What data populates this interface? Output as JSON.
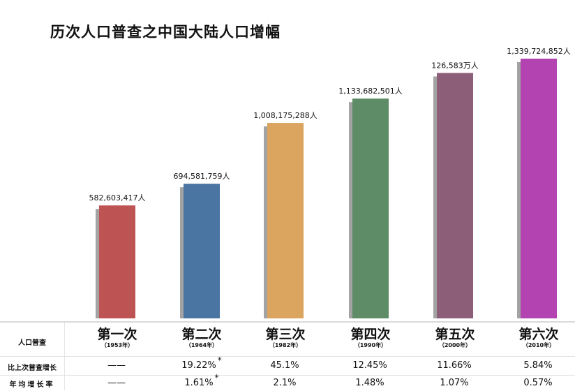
{
  "title": "历次人口普查之中国大陆人口增幅",
  "table": {
    "row_labels": {
      "census": "人口普查",
      "growth": "比上次普查增长",
      "annual": "年均增长率"
    },
    "columns": [
      {
        "name": "第一次",
        "year": "（1953年）",
        "growth": "——",
        "growth_mark": "",
        "annual": "——",
        "annual_mark": ""
      },
      {
        "name": "第二次",
        "year": "（1964年）",
        "growth": "19.22%",
        "growth_mark": "*",
        "annual": "1.61%",
        "annual_mark": "*"
      },
      {
        "name": "第三次",
        "year": "（1982年）",
        "growth": "45.1%",
        "growth_mark": "",
        "annual": "2.1%",
        "annual_mark": ""
      },
      {
        "name": "第四次",
        "year": "（1990年）",
        "growth": "12.45%",
        "growth_mark": "",
        "annual": "1.48%",
        "annual_mark": ""
      },
      {
        "name": "第五次",
        "year": "（2000年）",
        "growth": "11.66%",
        "growth_mark": "",
        "annual": "1.07%",
        "annual_mark": ""
      },
      {
        "name": "第六次",
        "year": "（2010年）",
        "growth": "5.84%",
        "growth_mark": "",
        "annual": "0.57%",
        "annual_mark": ""
      }
    ]
  },
  "chart_data": {
    "type": "bar",
    "title": "历次人口普查之中国大陆人口增幅",
    "xlabel": "",
    "ylabel": "",
    "categories": [
      "第一次",
      "第二次",
      "第三次",
      "第四次",
      "第五次",
      "第六次"
    ],
    "values": [
      582603417,
      694581759,
      1008175288,
      1133682501,
      1265830000,
      1339724852
    ],
    "data_labels": [
      "582,603,417人",
      "694,581,759人",
      "1,008,175,288人",
      "1,133,682,501人",
      "126,583万人",
      "1,339,724,852人"
    ],
    "ylim": [
      0,
      1339724852
    ],
    "grid": false,
    "legend": "none",
    "colors": [
      "#bd5352",
      "#4a74a1",
      "#dba45f",
      "#5e8c66",
      "#8c5e78",
      "#b343b1"
    ],
    "shadow_color": "#a3a3a3"
  }
}
